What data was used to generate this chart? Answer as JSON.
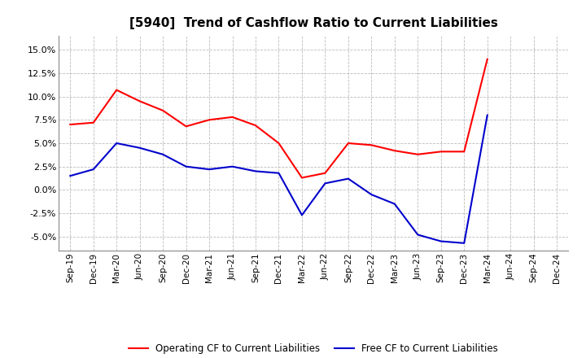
{
  "title": "[5940]  Trend of Cashflow Ratio to Current Liabilities",
  "x_labels": [
    "Sep-19",
    "Dec-19",
    "Mar-20",
    "Jun-20",
    "Sep-20",
    "Dec-20",
    "Mar-21",
    "Jun-21",
    "Sep-21",
    "Dec-21",
    "Mar-22",
    "Jun-22",
    "Sep-22",
    "Dec-22",
    "Mar-23",
    "Jun-23",
    "Sep-23",
    "Dec-23",
    "Mar-24",
    "Jun-24",
    "Sep-24",
    "Dec-24"
  ],
  "operating_cf": [
    7.0,
    7.2,
    10.7,
    9.5,
    8.5,
    6.8,
    7.5,
    7.8,
    6.9,
    5.0,
    1.3,
    1.8,
    5.0,
    4.8,
    4.2,
    3.8,
    4.1,
    4.1,
    14.0,
    null,
    null,
    null
  ],
  "free_cf": [
    1.5,
    2.2,
    5.0,
    4.5,
    3.8,
    2.5,
    2.2,
    2.5,
    2.0,
    1.8,
    -2.7,
    0.7,
    1.2,
    -0.5,
    -1.5,
    -4.8,
    -5.5,
    -5.7,
    8.0,
    null,
    null,
    null
  ],
  "operating_color": "#FF0000",
  "free_color": "#0000CC",
  "ylim": [
    -6.5,
    16.5
  ],
  "yticks": [
    -5.0,
    -2.5,
    0.0,
    2.5,
    5.0,
    7.5,
    10.0,
    12.5,
    15.0
  ],
  "legend_labels": [
    "Operating CF to Current Liabilities",
    "Free CF to Current Liabilities"
  ],
  "background_color": "#FFFFFF",
  "grid_color": "#BBBBBB"
}
